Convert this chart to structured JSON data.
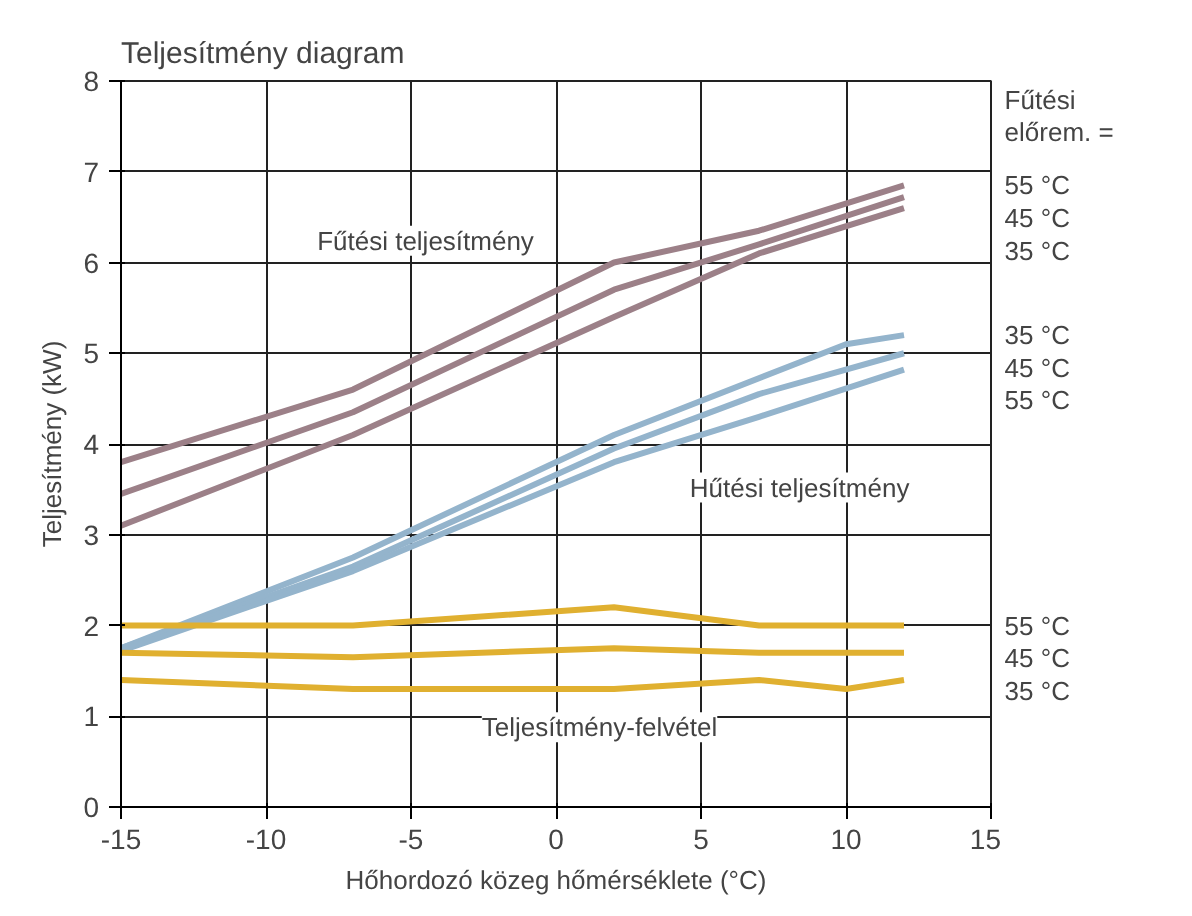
{
  "chart_data": {
    "type": "line",
    "title": "Teljesítmény diagram",
    "xlabel": "Hőhordozó közeg hőmérséklete (°C)",
    "ylabel": "Teljesítmény (kW)",
    "legend_title": "Fűtési\nelőrem. =",
    "xlim": [
      -15,
      15
    ],
    "ylim": [
      0,
      8
    ],
    "xticks": [
      -15,
      -10,
      -5,
      0,
      5,
      10,
      15
    ],
    "yticks": [
      0,
      1,
      2,
      3,
      4,
      5,
      6,
      7,
      8
    ],
    "grid": true,
    "marker": "none",
    "line_style": "solid",
    "series": [
      {
        "name": "55 °C",
        "color": "#9c8088",
        "x": [
          -15,
          -7,
          2,
          7,
          12
        ],
        "values": [
          3.8,
          4.6,
          6.0,
          6.35,
          6.85
        ]
      },
      {
        "name": "45 °C",
        "color": "#9c8088",
        "x": [
          -15,
          -7,
          2,
          7,
          12
        ],
        "values": [
          3.45,
          4.35,
          5.7,
          6.2,
          6.72
        ]
      },
      {
        "name": "35 °C",
        "color": "#9c8088",
        "x": [
          -15,
          -7,
          2,
          7,
          12
        ],
        "values": [
          3.1,
          4.1,
          5.4,
          6.1,
          6.6
        ]
      },
      {
        "name": "35 °C",
        "color": "#94b4cc",
        "x": [
          -15,
          -7,
          2,
          10,
          12
        ],
        "values": [
          1.75,
          2.75,
          4.1,
          5.1,
          5.2
        ]
      },
      {
        "name": "45 °C",
        "color": "#94b4cc",
        "x": [
          -15,
          -7,
          2,
          7,
          12
        ],
        "values": [
          1.75,
          2.65,
          3.95,
          4.55,
          5.0
        ]
      },
      {
        "name": "55 °C",
        "color": "#94b4cc",
        "x": [
          -15,
          -7,
          2,
          7,
          12
        ],
        "values": [
          1.72,
          2.6,
          3.8,
          4.3,
          4.82
        ]
      },
      {
        "name": "55 °C",
        "color": "#e0b030",
        "x": [
          -15,
          -7,
          2,
          7,
          12
        ],
        "values": [
          2.0,
          2.0,
          2.2,
          2.0,
          2.0
        ]
      },
      {
        "name": "45 °C",
        "color": "#e0b030",
        "x": [
          -15,
          -7,
          2,
          7,
          12
        ],
        "values": [
          1.7,
          1.65,
          1.75,
          1.7,
          1.7
        ]
      },
      {
        "name": "35 °C",
        "color": "#e0b030",
        "x": [
          -15,
          -7,
          2,
          7,
          10,
          12
        ],
        "values": [
          1.4,
          1.3,
          1.3,
          1.4,
          1.3,
          1.4
        ]
      }
    ],
    "annotations": [
      "Fűtési teljesítmény",
      "Hűtési teljesítmény",
      "Teljesítmény-felvétel"
    ]
  }
}
